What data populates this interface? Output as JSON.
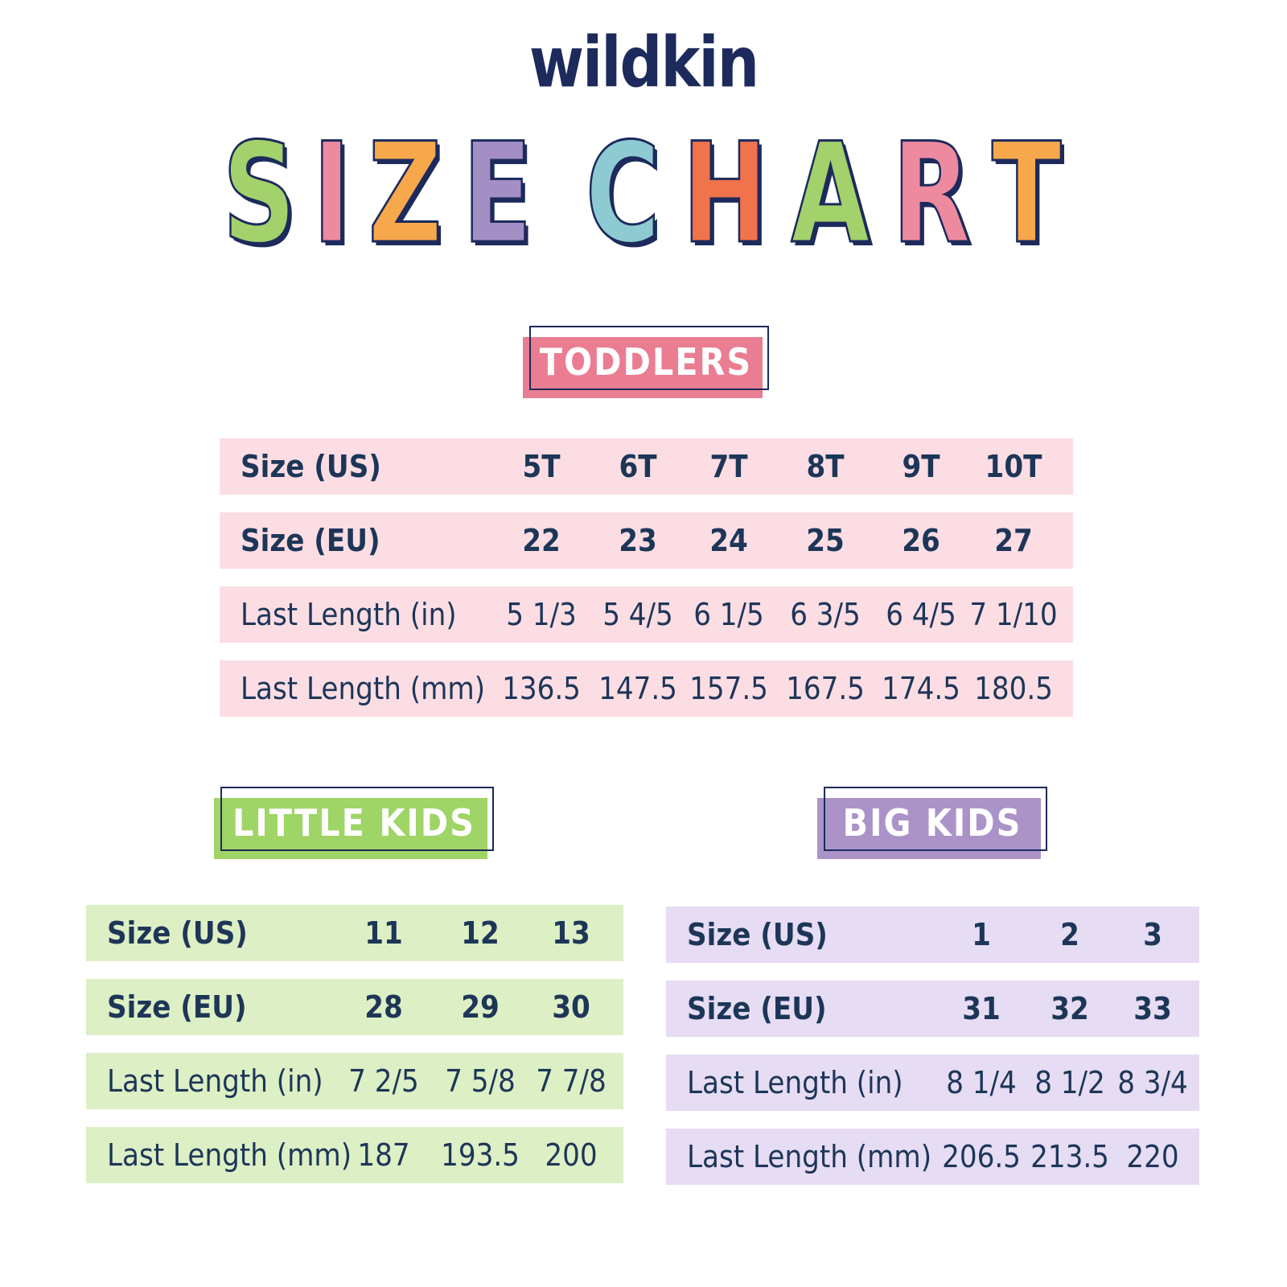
{
  "brand": {
    "logo": "wildkin",
    "title_letters": [
      {
        "ch": "S",
        "color": "#a3d16b"
      },
      {
        "ch": "I",
        "color": "#ee8aa0"
      },
      {
        "ch": "Z",
        "color": "#f7a84b"
      },
      {
        "ch": "E",
        "color": "#a48fc4"
      },
      {
        "ch": " ",
        "color": ""
      },
      {
        "ch": "C",
        "color": "#8ecad2"
      },
      {
        "ch": "H",
        "color": "#f0734c"
      },
      {
        "ch": "A",
        "color": "#a3d16b"
      },
      {
        "ch": "R",
        "color": "#ee8aa0"
      },
      {
        "ch": "T",
        "color": "#f7a84b"
      }
    ],
    "title_text": "SIZE CHART"
  },
  "colors": {
    "text": "#1d3658",
    "navy": "#1c2a5c",
    "toddlers_label": "#ea7d91",
    "toddlers_row": "#fcdde3",
    "little_label": "#9fd466",
    "little_row": "#ddefc4",
    "big_label": "#ab93c8",
    "big_row": "#e6dcf3"
  },
  "toddlers": {
    "label": "TODDLERS",
    "rows": [
      {
        "head": "Size (US)",
        "bold": true,
        "cells": [
          "5T",
          "6T",
          "7T",
          "8T",
          "9T",
          "10T"
        ]
      },
      {
        "head": "Size (EU)",
        "bold": true,
        "cells": [
          "22",
          "23",
          "24",
          "25",
          "26",
          "27"
        ]
      },
      {
        "head": "Last Length (in)",
        "bold": false,
        "cells": [
          "5 1/3",
          "5 4/5",
          "6 1/5",
          "6 3/5",
          "6 4/5",
          "7 1/10"
        ]
      },
      {
        "head": "Last Length (mm)",
        "bold": false,
        "cells": [
          "136.5",
          "147.5",
          "157.5",
          "167.5",
          "174.5",
          "180.5"
        ]
      }
    ]
  },
  "little_kids": {
    "label": "LITTLE KIDS",
    "rows": [
      {
        "head": "Size (US)",
        "bold": true,
        "cells": [
          "11",
          "12",
          "13"
        ]
      },
      {
        "head": "Size (EU)",
        "bold": true,
        "cells": [
          "28",
          "29",
          "30"
        ]
      },
      {
        "head": "Last Length (in)",
        "bold": false,
        "cells": [
          "7 2/5",
          "7 5/8",
          "7 7/8"
        ]
      },
      {
        "head": "Last Length (mm)",
        "bold": false,
        "cells": [
          "187",
          "193.5",
          "200"
        ]
      }
    ]
  },
  "big_kids": {
    "label": "BIG KIDS",
    "rows": [
      {
        "head": "Size (US)",
        "bold": true,
        "cells": [
          "1",
          "2",
          "3"
        ]
      },
      {
        "head": "Size (EU)",
        "bold": true,
        "cells": [
          "31",
          "32",
          "33"
        ]
      },
      {
        "head": "Last Length (in)",
        "bold": false,
        "cells": [
          "8 1/4",
          "8 1/2",
          "8 3/4"
        ]
      },
      {
        "head": "Last Length (mm)",
        "bold": false,
        "cells": [
          "206.5",
          "213.5",
          "220"
        ]
      }
    ]
  }
}
